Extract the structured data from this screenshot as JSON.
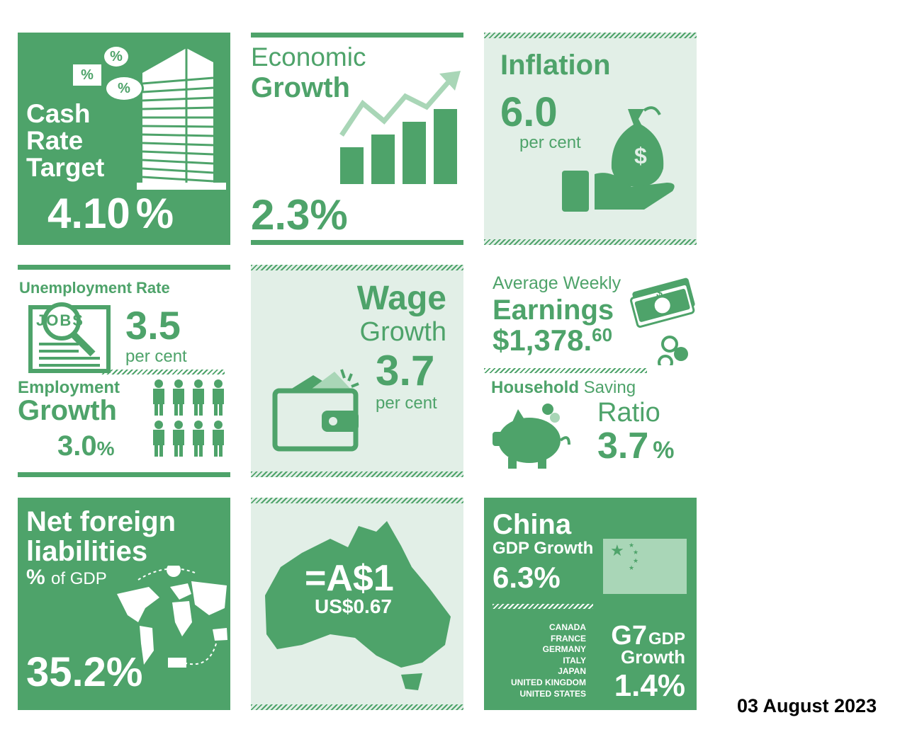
{
  "cash_rate": {
    "title_line1": "Cash",
    "title_line2": "Rate",
    "title_line3": "Target",
    "value": "4.10",
    "unit": "%",
    "bubble1": "%",
    "bubble2": "%",
    "bubble3": "%"
  },
  "economic_growth": {
    "title_line1": "Economic",
    "title_line2": "Growth",
    "value": "2.3%"
  },
  "inflation": {
    "title": "Inflation",
    "value": "6.0",
    "unit": "per cent",
    "coin_symbol": "$"
  },
  "unemployment": {
    "title": "Unemployment Rate",
    "value": "3.5",
    "unit": "per cent",
    "jobs_label": "JOBS"
  },
  "employment": {
    "title_line1": "Employment",
    "title_line2": "Growth",
    "value": "3.0",
    "unit": "%"
  },
  "wage_growth": {
    "title_line1": "Wage",
    "title_line2": "Growth",
    "value": "3.7",
    "unit": "per cent"
  },
  "weekly_earnings": {
    "title_line1": "Average Weekly",
    "title_line2": "Earnings",
    "value": "$1,378.",
    "cents": "60",
    "note_symbol": "$"
  },
  "household_saving": {
    "title_part1": "Household",
    "title_part2": "Saving",
    "title_line2": "Ratio",
    "value": "3.7",
    "unit": "%"
  },
  "net_foreign_liabilities": {
    "title_line1": "Net foreign",
    "title_line2": "liabilities",
    "subtitle_pct": "%",
    "subtitle_rest": "of GDP",
    "value": "35.2%"
  },
  "exchange_rate": {
    "line1": "=A$1",
    "line2": "US$0.67"
  },
  "china": {
    "title": "China",
    "subtitle": "GDP Growth",
    "value": "6.3%"
  },
  "g7": {
    "countries": [
      "CANADA",
      "FRANCE",
      "GERMANY",
      "ITALY",
      "JAPAN",
      "UNITED KINGDOM",
      "UNITED STATES"
    ],
    "title_big": "G7",
    "title_small": "GDP",
    "title_line2": "Growth",
    "value": "1.4%"
  },
  "date": "03 August 2023",
  "colors": {
    "accent": "#4ea36a",
    "pale_bg": "#e2efe7",
    "light_green": "#a9d6b7"
  }
}
